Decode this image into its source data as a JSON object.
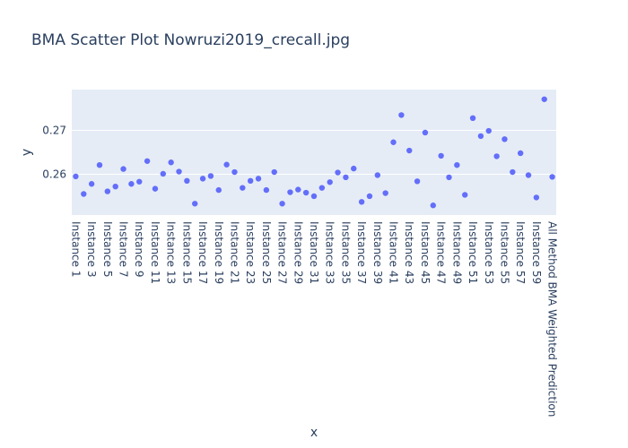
{
  "chart_data": {
    "type": "scatter",
    "title": "BMA Scatter Plot Nowruzi2019_crecall.jpg",
    "xlabel": "x",
    "ylabel": "y",
    "ylim": [
      0.2507,
      0.2793
    ],
    "yticks": [
      0.26,
      0.27
    ],
    "ytick_labels": [
      "0.26",
      "0.27"
    ],
    "grid": true,
    "marker_color": "#636efa",
    "plot_bg": "#e5ecf6",
    "categories": [
      "Instance 1",
      "Instance 2",
      "Instance 3",
      "Instance 4",
      "Instance 5",
      "Instance 6",
      "Instance 7",
      "Instance 8",
      "Instance 9",
      "Instance 10",
      "Instance 11",
      "Instance 12",
      "Instance 13",
      "Instance 14",
      "Instance 15",
      "Instance 16",
      "Instance 17",
      "Instance 18",
      "Instance 19",
      "Instance 20",
      "Instance 21",
      "Instance 22",
      "Instance 23",
      "Instance 24",
      "Instance 25",
      "Instance 26",
      "Instance 27",
      "Instance 28",
      "Instance 29",
      "Instance 30",
      "Instance 31",
      "Instance 32",
      "Instance 33",
      "Instance 34",
      "Instance 35",
      "Instance 36",
      "Instance 37",
      "Instance 38",
      "Instance 39",
      "Instance 40",
      "Instance 41",
      "Instance 42",
      "Instance 43",
      "Instance 44",
      "Instance 45",
      "Instance 46",
      "Instance 47",
      "Instance 48",
      "Instance 49",
      "Instance 50",
      "Instance 51",
      "Instance 52",
      "Instance 53",
      "Instance 54",
      "Instance 55",
      "Instance 56",
      "Instance 57",
      "Instance 58",
      "Instance 59",
      "Instance 60",
      "All Method BMA Weighted Prediction"
    ],
    "visible_tick_labels": [
      "Instance 1",
      "Instance 3",
      "Instance 5",
      "Instance 7",
      "Instance 9",
      "Instance 11",
      "Instance 13",
      "Instance 15",
      "Instance 17",
      "Instance 19",
      "Instance 21",
      "Instance 23",
      "Instance 25",
      "Instance 27",
      "Instance 29",
      "Instance 31",
      "Instance 33",
      "Instance 35",
      "Instance 37",
      "Instance 39",
      "Instance 41",
      "Instance 43",
      "Instance 45",
      "Instance 47",
      "Instance 49",
      "Instance 51",
      "Instance 53",
      "Instance 55",
      "Instance 57",
      "Instance 59",
      "All Method BMA Weighted Prediction"
    ],
    "values": [
      0.2595,
      0.2555,
      0.2578,
      0.2621,
      0.2561,
      0.2572,
      0.2612,
      0.2578,
      0.2583,
      0.263,
      0.2567,
      0.2601,
      0.2627,
      0.2606,
      0.2585,
      0.2533,
      0.259,
      0.2596,
      0.2564,
      0.2622,
      0.2605,
      0.2569,
      0.2585,
      0.259,
      0.2564,
      0.2605,
      0.2533,
      0.2559,
      0.2565,
      0.2558,
      0.255,
      0.2569,
      0.2582,
      0.2604,
      0.2593,
      0.2613,
      0.2537,
      0.255,
      0.2598,
      0.2557,
      0.2673,
      0.2735,
      0.2654,
      0.2584,
      0.2695,
      0.2529,
      0.2642,
      0.2593,
      0.2621,
      0.2553,
      0.2728,
      0.2687,
      0.2699,
      0.2641,
      0.268,
      0.2605,
      0.2648,
      0.2598,
      0.2547,
      0.2771,
      0.2594
    ]
  }
}
